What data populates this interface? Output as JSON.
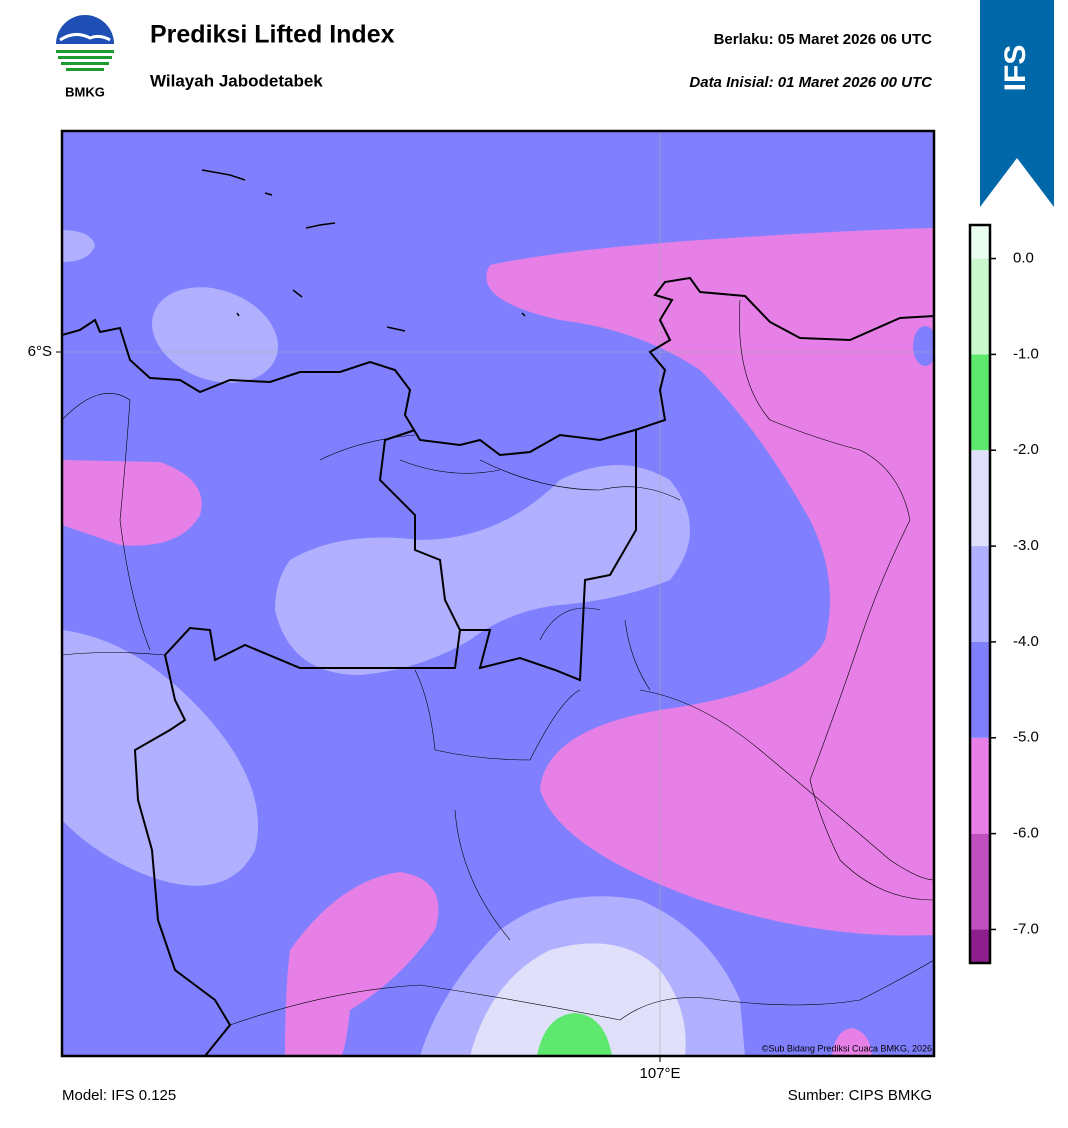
{
  "header": {
    "logo_text": "BMKG",
    "title": "Prediksi Lifted Index",
    "subtitle": "Wilayah Jabodetabek",
    "valid": "Berlaku:  05 Maret 2026 06 UTC",
    "init": "Data Inisial:  01 Maret 2026 00 UTC",
    "badge": "IFS"
  },
  "map": {
    "lat_label": "6°S",
    "lon_label": "107°E",
    "copyright": "©Sub Bidang Prediksi Cuaca BMKG, 2026"
  },
  "colorbar": {
    "levels": [
      -7.35,
      -7,
      -6,
      -5,
      -4,
      -3,
      -2,
      -1,
      0,
      0.35
    ],
    "colors": [
      "#8e1e8e",
      "#c050c0",
      "#e680e6",
      "#8080ff",
      "#b0b0ff",
      "#e0e0fb",
      "#5ee86e",
      "#c8f8cc",
      "#eafff0"
    ],
    "ticks": [
      {
        "value": 0,
        "label": "0.0"
      },
      {
        "value": -1,
        "label": "-1.0"
      },
      {
        "value": -2,
        "label": "-2.0"
      },
      {
        "value": -3,
        "label": "-3.0"
      },
      {
        "value": -4,
        "label": "-4.0"
      },
      {
        "value": -5,
        "label": "-5.0"
      },
      {
        "value": -6,
        "label": "-6.0"
      },
      {
        "value": -7,
        "label": "-7.0"
      }
    ]
  },
  "footer": {
    "model": "Model: IFS 0.125",
    "source": "Sumber: CIPS BMKG"
  }
}
